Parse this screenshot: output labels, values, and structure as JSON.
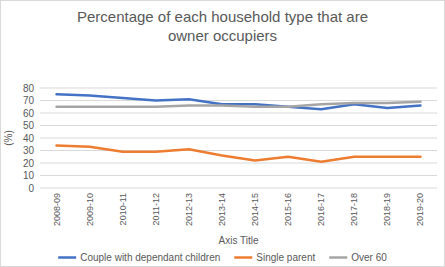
{
  "chart_data": {
    "type": "line",
    "title": "Percentage of each household type that are owner occupiers",
    "x_label": "Axis Title",
    "y_label": "(%)",
    "categories": [
      "2008-09",
      "2009-10",
      "2010-11",
      "2011-12",
      "2012-13",
      "2013-14",
      "2014-15",
      "2015-16",
      "2016-17",
      "2017-18",
      "2018-19",
      "2019-20"
    ],
    "series": [
      {
        "name": "Couple with dependant children",
        "color": "#4472c4",
        "values": [
          75,
          74,
          72,
          70,
          71,
          67,
          67,
          65,
          63,
          67,
          64,
          66
        ]
      },
      {
        "name": "Single parent",
        "color": "#ed7d31",
        "values": [
          34,
          33,
          29,
          29,
          31,
          26,
          22,
          25,
          21,
          25,
          25,
          25
        ]
      },
      {
        "name": "Over 60",
        "color": "#a5a5a5",
        "values": [
          65,
          65,
          65,
          65,
          66,
          66,
          65,
          65,
          67,
          68,
          68,
          69
        ]
      }
    ],
    "ylim": [
      0,
      80
    ],
    "yticks": [
      0,
      10,
      20,
      30,
      40,
      50,
      60,
      70,
      80
    ],
    "grid": true,
    "legend": "bottom"
  }
}
